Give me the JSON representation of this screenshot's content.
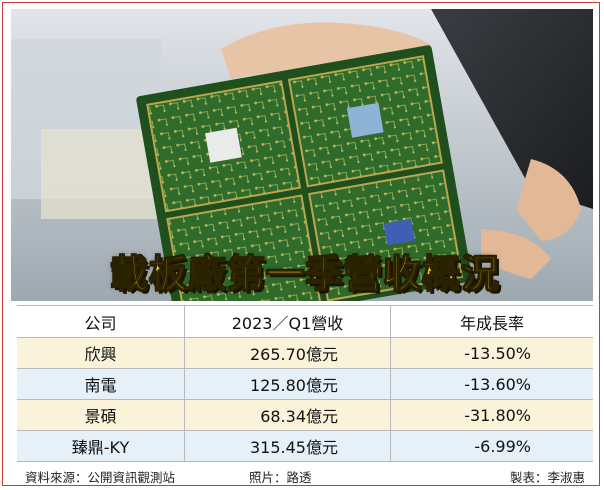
{
  "title": "載板廠第一季營收概況",
  "table": {
    "headers": [
      "公司",
      "2023／Q1營收",
      "年成長率"
    ],
    "rows": [
      {
        "company": "欣興",
        "revenue": "265.70億元",
        "growth": "-13.50%"
      },
      {
        "company": "南電",
        "revenue": "125.80億元",
        "growth": "-13.60%"
      },
      {
        "company": "景碩",
        "revenue": "68.34億元",
        "growth": "-31.80%"
      },
      {
        "company": "臻鼎-KY",
        "revenue": "315.45億元",
        "growth": "-6.99%"
      }
    ]
  },
  "footer": {
    "source": "資料來源：公開資訊觀測站",
    "photo_credit": "照片：路透",
    "maker": "製表：李淑惠"
  },
  "colors": {
    "title_fill": "#f7d400",
    "row_tint_a": "#fbf3d9",
    "row_tint_b": "#e5f0f8",
    "border": "#c83a3a",
    "pcb_green": "#2f6b2a"
  }
}
